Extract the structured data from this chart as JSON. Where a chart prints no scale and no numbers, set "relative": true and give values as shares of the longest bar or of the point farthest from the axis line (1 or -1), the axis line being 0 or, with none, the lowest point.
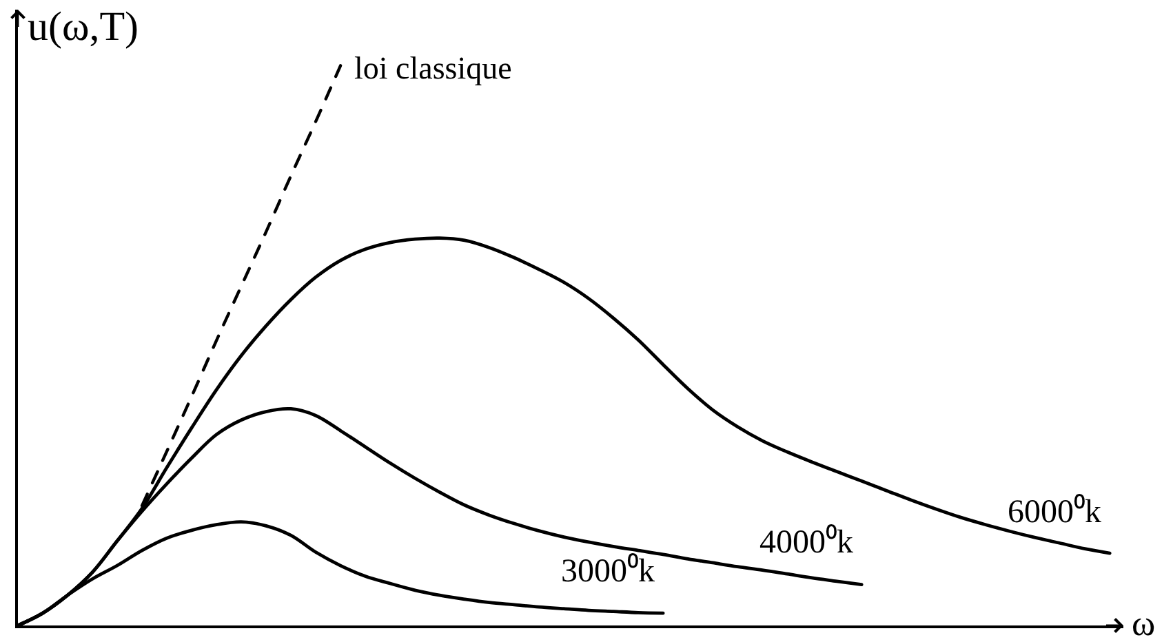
{
  "chart_data": {
    "type": "line",
    "relative": true,
    "xlabel": "ω",
    "ylabel": "u(ω,T)",
    "line_style": "solid",
    "categories": [
      null,
      null,
      null,
      null,
      null,
      null,
      null,
      null,
      null,
      null,
      null,
      null,
      null,
      null,
      null,
      null,
      null,
      null,
      null,
      null,
      null,
      null,
      null,
      null,
      null,
      null,
      null,
      null,
      null,
      null,
      null,
      null,
      null,
      null,
      null,
      null,
      null,
      null,
      null,
      null,
      null,
      null,
      null,
      null,
      null
    ],
    "series": [
      {
        "name": "6000⁰k",
        "color": "#000000",
        "values": [
          0,
          0.022,
          0.054,
          0.095,
          0.151,
          0.209,
          0.282,
          0.353,
          0.421,
          0.482,
          0.535,
          0.582,
          0.622,
          0.652,
          0.672,
          0.684,
          0.69,
          0.692,
          0.688,
          0.675,
          0.657,
          0.636,
          0.613,
          0.584,
          0.549,
          0.51,
          0.466,
          0.423,
          0.385,
          0.355,
          0.33,
          0.31,
          0.292,
          0.275,
          0.258,
          0.241,
          0.224,
          0.208,
          0.193,
          0.18,
          0.168,
          0.157,
          0.147,
          0.137,
          0.129
        ]
      },
      {
        "name": "4000⁰k",
        "color": "#000000",
        "values": [
          0,
          0.022,
          0.054,
          0.095,
          0.151,
          0.204,
          0.253,
          0.299,
          0.341,
          0.367,
          0.382,
          0.387,
          0.375,
          0.348,
          0.319,
          0.29,
          0.263,
          0.238,
          0.215,
          0.197,
          0.182,
          0.169,
          0.158,
          0.149,
          0.141,
          0.134,
          0.127,
          0.119,
          0.112,
          0.105,
          0.099,
          0.092,
          0.085,
          0.079,
          0.073,
          null,
          null,
          null,
          null,
          null,
          null,
          null,
          null,
          null,
          null
        ]
      },
      {
        "name": "3000⁰k",
        "color": "#000000",
        "values": [
          0,
          0.022,
          0.054,
          0.083,
          0.107,
          0.134,
          0.156,
          0.17,
          0.18,
          0.185,
          0.178,
          0.161,
          0.131,
          0.107,
          0.088,
          0.075,
          0.063,
          0.054,
          0.047,
          0.041,
          0.037,
          0.033,
          0.03,
          0.027,
          0.025,
          0.023,
          0.022,
          null,
          null,
          null,
          null,
          null,
          null,
          null,
          null,
          null,
          null,
          null,
          null,
          null,
          null,
          null,
          null,
          null,
          null
        ]
      },
      {
        "name": "loi classique",
        "color": "#000000",
        "line_style": "dashed",
        "values": [
          null,
          null,
          null,
          null,
          null,
          0.214,
          0.311,
          0.409,
          0.509,
          0.606,
          0.703,
          0.803,
          0.9,
          1.0,
          null,
          null,
          null,
          null,
          null,
          null,
          null,
          null,
          null,
          null,
          null,
          null,
          null,
          null,
          null,
          null,
          null,
          null,
          null,
          null,
          null,
          null,
          null,
          null,
          null,
          null,
          null,
          null,
          null,
          null,
          null
        ]
      }
    ]
  }
}
